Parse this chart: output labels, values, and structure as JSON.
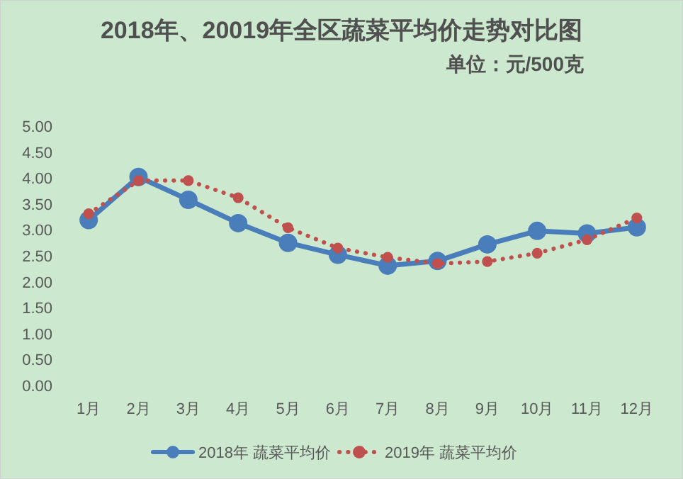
{
  "chart_data": {
    "type": "line",
    "title": "2018年、20019年全区蔬菜平均价走势对比图",
    "subtitle": "单位：元/500克",
    "categories": [
      "1月",
      "2月",
      "3月",
      "4月",
      "5月",
      "6月",
      "7月",
      "8月",
      "9月",
      "10月",
      "11月",
      "12月"
    ],
    "series": [
      {
        "name": "2018年 蔬菜平均价",
        "color": "#4a7ebb",
        "line_style": "solid",
        "marker": "circle",
        "values": [
          3.19,
          4.02,
          3.58,
          3.13,
          2.75,
          2.52,
          2.31,
          2.4,
          2.72,
          2.98,
          2.93,
          3.05
        ]
      },
      {
        "name": "2019年 蔬菜平均价",
        "color": "#c0504d",
        "line_style": "dotted",
        "marker": "circle",
        "values": [
          3.31,
          3.95,
          3.95,
          3.62,
          3.04,
          2.65,
          2.47,
          2.35,
          2.39,
          2.55,
          2.81,
          3.23
        ]
      }
    ],
    "ylim": [
      0,
      5
    ],
    "yticks": [
      {
        "value": 0,
        "label": "0.00"
      },
      {
        "value": 0.5,
        "label": "0.50"
      },
      {
        "value": 1,
        "label": "1.00"
      },
      {
        "value": 1.5,
        "label": "1.50"
      },
      {
        "value": 2,
        "label": "2.00"
      },
      {
        "value": 2.5,
        "label": "2.50"
      },
      {
        "value": 3,
        "label": "3.00"
      },
      {
        "value": 3.5,
        "label": "3.50"
      },
      {
        "value": 4,
        "label": "4.00"
      },
      {
        "value": 4.5,
        "label": "4.50"
      },
      {
        "value": 5,
        "label": "5.00"
      }
    ],
    "grid": false,
    "legend": "bottom"
  }
}
